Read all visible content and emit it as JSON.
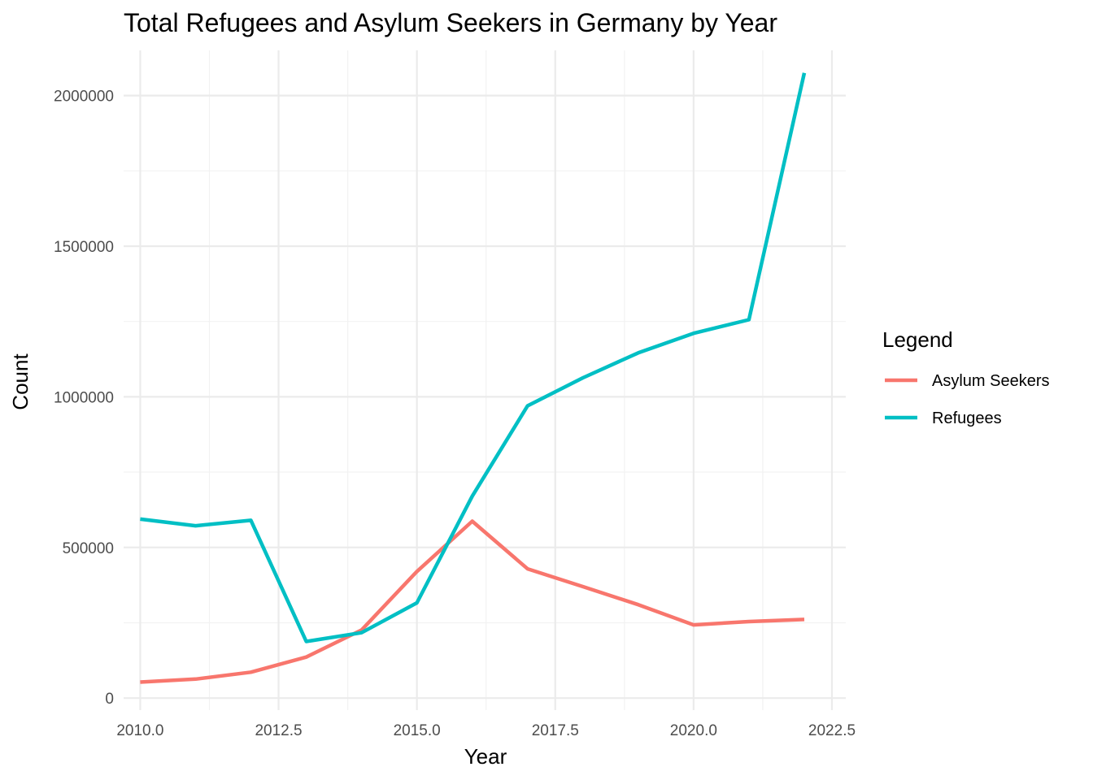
{
  "chart_data": {
    "type": "line",
    "title": "Total Refugees and Asylum Seekers in Germany by Year",
    "xlabel": "Year",
    "ylabel": "Count",
    "xlim": [
      2009.7,
      2022.75
    ],
    "ylim": [
      -40000,
      2150000
    ],
    "x_ticks": [
      "2010.0",
      "2012.5",
      "2015.0",
      "2017.5",
      "2020.0",
      "2022.5"
    ],
    "x_tick_values": [
      2010,
      2012.5,
      2015,
      2017.5,
      2020,
      2022.5
    ],
    "y_ticks": [
      "0",
      "500000",
      "1000000",
      "1500000",
      "2000000"
    ],
    "y_tick_values": [
      0,
      500000,
      1000000,
      1500000,
      2000000
    ],
    "grid": true,
    "legend": {
      "title": "Legend",
      "position": "right"
    },
    "x": [
      2010,
      2011,
      2012,
      2013,
      2014,
      2015,
      2016,
      2017,
      2018,
      2019,
      2020,
      2021,
      2022
    ],
    "series": [
      {
        "name": "Asylum Seekers",
        "color": "#F8766D",
        "values": [
          53000,
          63000,
          86000,
          136000,
          226000,
          420000,
          587000,
          429000,
          370000,
          310000,
          243000,
          254000,
          261000
        ]
      },
      {
        "name": "Refugees",
        "color": "#00BFC4",
        "values": [
          594000,
          572000,
          590000,
          188000,
          217000,
          316000,
          670000,
          970000,
          1063000,
          1146000,
          1211000,
          1256000,
          2075000
        ]
      }
    ]
  }
}
